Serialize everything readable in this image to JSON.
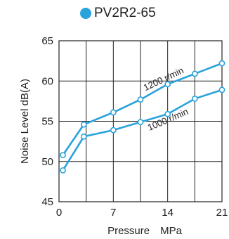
{
  "chart_data": {
    "type": "line",
    "title": "PV2R2-65",
    "title_marker_color": "#2aa2dc",
    "xlabel": "Pressure　MPa",
    "ylabel": "Noise Level  dB(A)",
    "xlim": [
      0,
      21
    ],
    "ylim": [
      45,
      65
    ],
    "xticks": [
      0,
      7,
      14,
      21
    ],
    "yticks": [
      45,
      50,
      55,
      60,
      65
    ],
    "x_grid": [
      0,
      3.5,
      7,
      10.5,
      14,
      17.5,
      21
    ],
    "y_grid": [
      45,
      50,
      55,
      60,
      65
    ],
    "grid": true,
    "line_color": "#2aa2dc",
    "series": [
      {
        "name": "1200 r/min",
        "x": [
          0.5,
          3.2,
          7,
          10.5,
          14,
          17.5,
          21
        ],
        "y": [
          50.8,
          54.6,
          56.1,
          57.7,
          59.6,
          60.9,
          62.2
        ]
      },
      {
        "name": "1000 r/min",
        "x": [
          0.5,
          3.2,
          7,
          10.5,
          14,
          17.5,
          21
        ],
        "y": [
          48.9,
          53.1,
          53.9,
          54.9,
          55.9,
          57.8,
          58.9
        ]
      }
    ]
  }
}
